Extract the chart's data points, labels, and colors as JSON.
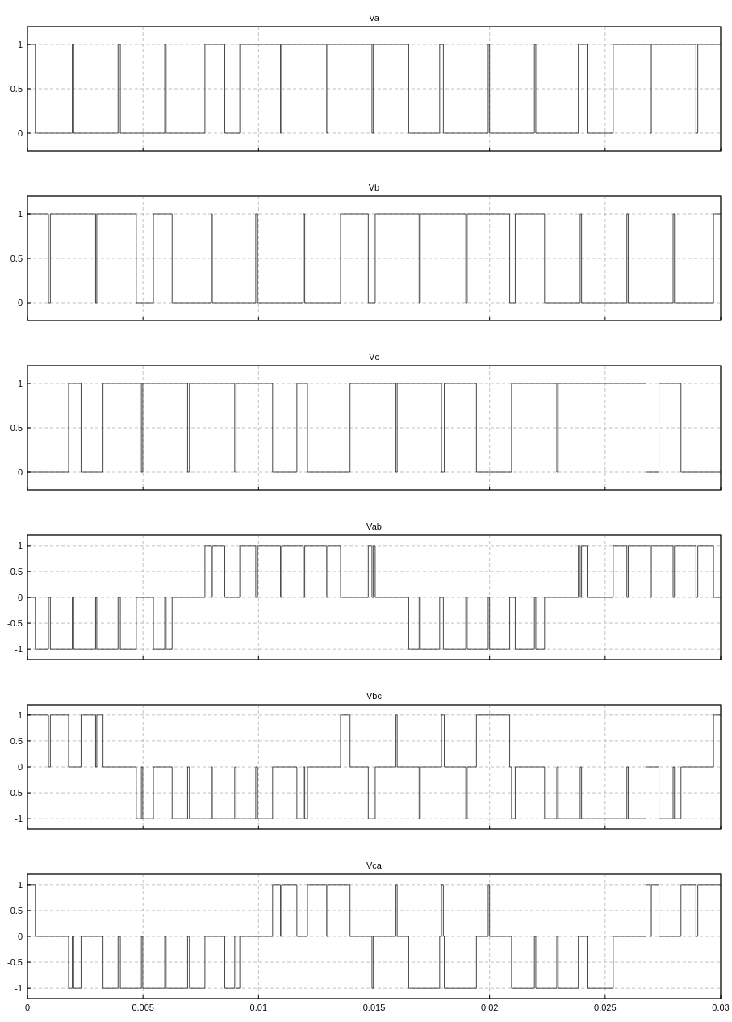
{
  "chart_data": [
    {
      "type": "step",
      "title": "Va",
      "color": "#333333",
      "xlim": [
        0,
        0.03
      ],
      "xticks": [
        0,
        0.005,
        0.01,
        0.015,
        0.02,
        0.025,
        0.03
      ],
      "ylim": [
        -0.2,
        1.2
      ],
      "yticks": [
        0,
        0.5,
        1
      ],
      "grid": true,
      "tick_labels": "y",
      "x": [
        0,
        0.00034,
        0.00194,
        0.002,
        0.00392,
        0.00402,
        0.00594,
        0.006,
        0.00768,
        0.00854,
        0.00919,
        0.01095,
        0.011,
        0.01295,
        0.013,
        0.01491,
        0.01497,
        0.0165,
        0.01784,
        0.018,
        0.01994,
        0.02,
        0.02194,
        0.022,
        0.02384,
        0.02422,
        0.02535,
        0.02695,
        0.027,
        0.02893,
        0.02901,
        0.03
      ],
      "values": [
        1,
        0,
        1,
        0,
        1,
        0,
        1,
        0,
        1,
        0,
        1,
        0,
        1,
        0,
        1,
        0,
        1,
        0,
        1,
        0,
        1,
        0,
        1,
        0,
        1,
        0,
        1,
        0,
        1,
        0,
        1,
        1
      ]
    },
    {
      "type": "step",
      "title": "Vb",
      "color": "#333333",
      "xlim": [
        0,
        0.03
      ],
      "xticks": [
        0,
        0.005,
        0.01,
        0.015,
        0.02,
        0.025,
        0.03
      ],
      "ylim": [
        -0.2,
        1.2
      ],
      "yticks": [
        0,
        0.5,
        1
      ],
      "grid": true,
      "tick_labels": "y",
      "x": [
        0,
        0.00091,
        0.00099,
        0.00295,
        0.003,
        0.00471,
        0.00545,
        0.00626,
        0.00796,
        0.008,
        0.00988,
        0.00996,
        0.01194,
        0.012,
        0.01355,
        0.01475,
        0.01505,
        0.01695,
        0.017,
        0.01897,
        0.01903,
        0.02087,
        0.02111,
        0.02238,
        0.02392,
        0.02398,
        0.02594,
        0.026,
        0.02794,
        0.028,
        0.02969,
        0.03
      ],
      "values": [
        1,
        0,
        1,
        0,
        1,
        0,
        1,
        0,
        1,
        0,
        1,
        0,
        1,
        0,
        1,
        0,
        1,
        0,
        1,
        0,
        1,
        0,
        1,
        0,
        1,
        0,
        1,
        0,
        1,
        0,
        1,
        1
      ]
    },
    {
      "type": "step",
      "title": "Vc",
      "color": "#333333",
      "xlim": [
        0,
        0.03
      ],
      "xticks": [
        0,
        0.005,
        0.01,
        0.015,
        0.02,
        0.025,
        0.03
      ],
      "ylim": [
        -0.2,
        1.2
      ],
      "yticks": [
        0,
        0.5,
        1
      ],
      "grid": true,
      "tick_labels": "y",
      "x": [
        0,
        0.00178,
        0.00232,
        0.00327,
        0.00493,
        0.00499,
        0.00693,
        0.00701,
        0.00897,
        0.00903,
        0.01061,
        0.01166,
        0.01212,
        0.01396,
        0.01594,
        0.016,
        0.01792,
        0.01804,
        0.01943,
        0.02095,
        0.02291,
        0.02297,
        0.02677,
        0.02733,
        0.02828,
        0.03
      ],
      "values": [
        0,
        1,
        0,
        1,
        0,
        1,
        0,
        1,
        0,
        1,
        0,
        1,
        0,
        1,
        0,
        1,
        0,
        1,
        0,
        1,
        0,
        1,
        0,
        1,
        0,
        0
      ]
    },
    {
      "type": "step",
      "title": "Vab",
      "color": "#333333",
      "xlim": [
        0,
        0.03
      ],
      "xticks": [
        0,
        0.005,
        0.01,
        0.015,
        0.02,
        0.025,
        0.03
      ],
      "ylim": [
        -1.2,
        1.2
      ],
      "yticks": [
        -1,
        -0.5,
        0,
        0.5,
        1
      ],
      "grid": true,
      "tick_labels": "y",
      "x": [
        0,
        0.00034,
        0.00091,
        0.00099,
        0.00194,
        0.002,
        0.00295,
        0.003,
        0.00392,
        0.00402,
        0.00471,
        0.00545,
        0.00594,
        0.006,
        0.00626,
        0.00768,
        0.00796,
        0.008,
        0.00854,
        0.00919,
        0.00988,
        0.00996,
        0.01095,
        0.011,
        0.01194,
        0.012,
        0.01295,
        0.013,
        0.01355,
        0.01475,
        0.01491,
        0.01497,
        0.01505,
        0.0165,
        0.01695,
        0.017,
        0.01784,
        0.018,
        0.01897,
        0.01903,
        0.01994,
        0.02,
        0.02087,
        0.02111,
        0.02194,
        0.022,
        0.02238,
        0.02384,
        0.02392,
        0.02398,
        0.02422,
        0.02535,
        0.02594,
        0.026,
        0.02695,
        0.027,
        0.02794,
        0.028,
        0.02893,
        0.02901,
        0.02969,
        0.03
      ],
      "values": [
        0,
        -1,
        0,
        -1,
        0,
        -1,
        0,
        -1,
        0,
        -1,
        0,
        -1,
        0,
        -1,
        0,
        1,
        0,
        1,
        0,
        1,
        0,
        1,
        0,
        1,
        0,
        1,
        0,
        1,
        0,
        1,
        0,
        1,
        0,
        -1,
        0,
        -1,
        0,
        -1,
        0,
        -1,
        0,
        -1,
        0,
        -1,
        0,
        -1,
        0,
        1,
        0,
        1,
        0,
        1,
        0,
        1,
        0,
        1,
        0,
        1,
        0,
        1,
        0,
        0
      ]
    },
    {
      "type": "step",
      "title": "Vbc",
      "color": "#333333",
      "xlim": [
        0,
        0.03
      ],
      "xticks": [
        0,
        0.005,
        0.01,
        0.015,
        0.02,
        0.025,
        0.03
      ],
      "ylim": [
        -1.2,
        1.2
      ],
      "yticks": [
        -1,
        -0.5,
        0,
        0.5,
        1
      ],
      "grid": true,
      "tick_labels": "y",
      "x": [
        0,
        0.00091,
        0.00099,
        0.00178,
        0.00232,
        0.00295,
        0.003,
        0.00327,
        0.00471,
        0.00493,
        0.00499,
        0.00545,
        0.00626,
        0.00693,
        0.00701,
        0.00796,
        0.008,
        0.00897,
        0.00903,
        0.00988,
        0.00996,
        0.01061,
        0.01166,
        0.01194,
        0.012,
        0.01212,
        0.01355,
        0.01396,
        0.01475,
        0.01505,
        0.01594,
        0.016,
        0.01695,
        0.017,
        0.01792,
        0.01804,
        0.01897,
        0.01903,
        0.01943,
        0.02087,
        0.02095,
        0.02111,
        0.02238,
        0.02291,
        0.02297,
        0.02392,
        0.02398,
        0.02594,
        0.026,
        0.02677,
        0.02733,
        0.02794,
        0.028,
        0.02828,
        0.02969,
        0.03
      ],
      "values": [
        1,
        0,
        1,
        0,
        1,
        0,
        1,
        0,
        -1,
        0,
        -1,
        0,
        -1,
        0,
        -1,
        0,
        -1,
        0,
        -1,
        0,
        -1,
        0,
        -1,
        0,
        -1,
        0,
        1,
        0,
        -1,
        0,
        1,
        0,
        -1,
        0,
        1,
        0,
        -1,
        0,
        1,
        0,
        -1,
        0,
        -1,
        0,
        -1,
        0,
        -1,
        0,
        -1,
        0,
        -1,
        0,
        -1,
        0,
        1,
        1
      ]
    },
    {
      "type": "step",
      "title": "Vca",
      "color": "#333333",
      "xlim": [
        0,
        0.03
      ],
      "xticks": [
        0,
        0.005,
        0.01,
        0.015,
        0.02,
        0.025,
        0.03
      ],
      "ylim": [
        -1.2,
        1.2
      ],
      "yticks": [
        -1,
        -0.5,
        0,
        0.5,
        1
      ],
      "grid": true,
      "x": [
        0,
        0.00034,
        0.00178,
        0.00194,
        0.002,
        0.00232,
        0.00327,
        0.00392,
        0.00402,
        0.00493,
        0.00499,
        0.00594,
        0.006,
        0.00693,
        0.00701,
        0.00768,
        0.00854,
        0.00897,
        0.00903,
        0.00919,
        0.01061,
        0.01095,
        0.011,
        0.01166,
        0.01212,
        0.01295,
        0.013,
        0.01396,
        0.01491,
        0.01497,
        0.01594,
        0.016,
        0.0165,
        0.01784,
        0.01792,
        0.018,
        0.01804,
        0.01943,
        0.01994,
        0.02,
        0.02095,
        0.02194,
        0.022,
        0.02291,
        0.02297,
        0.02384,
        0.02422,
        0.02535,
        0.02677,
        0.02695,
        0.027,
        0.02733,
        0.02828,
        0.02893,
        0.02901,
        0.03
      ],
      "values": [
        1,
        0,
        -1,
        0,
        -1,
        0,
        -1,
        0,
        -1,
        0,
        -1,
        0,
        -1,
        0,
        -1,
        0,
        -1,
        0,
        -1,
        0,
        1,
        0,
        1,
        0,
        1,
        0,
        1,
        0,
        -1,
        0,
        1,
        0,
        -1,
        0,
        1,
        0,
        -1,
        0,
        1,
        0,
        -1,
        0,
        -1,
        0,
        -1,
        0,
        -1,
        0,
        1,
        0,
        1,
        0,
        1,
        0,
        1,
        1
      ]
    }
  ]
}
